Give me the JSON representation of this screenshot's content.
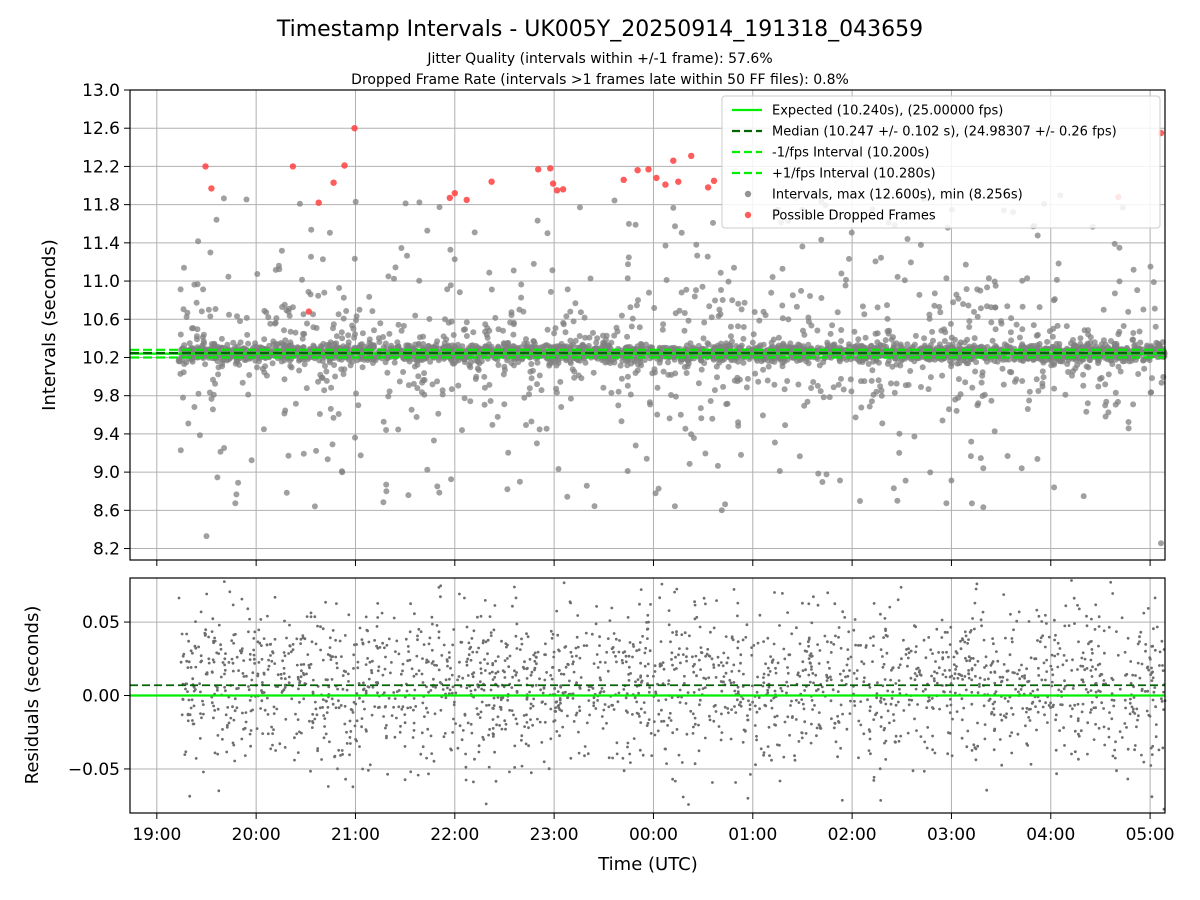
{
  "chart_data": {
    "title": "Timestamp Intervals - UK005Y_20250914_191318_043659",
    "subtitle_1": "Jitter Quality (intervals within +/-1 frame): 57.6%",
    "subtitle_2": "Dropped Frame Rate (intervals >1 frames late within 50 FF files): 0.8%",
    "xlabel": "Time (UTC)",
    "x_ticks": [
      "19:00",
      "20:00",
      "21:00",
      "22:00",
      "23:00",
      "00:00",
      "01:00",
      "02:00",
      "03:00",
      "04:00",
      "05:00"
    ],
    "x_range_hours": [
      -0.27,
      10.15
    ],
    "data_start_hour": 0.22,
    "data_end_hour": 10.15,
    "top": {
      "type": "scatter",
      "ylabel": "Intervals (seconds)",
      "ylim": [
        8.08,
        13.0
      ],
      "y_ticks": [
        "8.2",
        "8.6",
        "9.0",
        "9.4",
        "9.8",
        "10.2",
        "10.6",
        "11.0",
        "11.4",
        "11.8",
        "12.2",
        "12.6",
        "13.0"
      ],
      "expected": 10.24,
      "median": 10.247,
      "minus_interval": 10.2,
      "plus_interval": 10.28,
      "max_interval": 12.6,
      "min_interval": 8.256,
      "grid": true,
      "legend_position": "top-right",
      "legend": [
        "Expected (10.240s), (25.00000 fps)",
        "Median (10.247 +/- 0.102 s), (24.98307 +/- 0.26 fps)",
        "-1/fps Interval (10.200s)",
        "+1/fps Interval (10.280s)",
        "Intervals, max (12.600s), min (8.256s)",
        "Possible Dropped Frames"
      ],
      "dropped_frames": [
        [
          0.49,
          12.2
        ],
        [
          0.55,
          11.97
        ],
        [
          1.37,
          12.2
        ],
        [
          1.53,
          10.68
        ],
        [
          1.63,
          11.82
        ],
        [
          1.78,
          12.03
        ],
        [
          1.89,
          12.21
        ],
        [
          1.99,
          12.6
        ],
        [
          2.95,
          11.87
        ],
        [
          3.0,
          11.92
        ],
        [
          3.12,
          11.85
        ],
        [
          3.37,
          12.04
        ],
        [
          3.84,
          12.17
        ],
        [
          3.96,
          12.18
        ],
        [
          3.99,
          12.02
        ],
        [
          4.03,
          11.95
        ],
        [
          4.09,
          11.96
        ],
        [
          4.7,
          12.06
        ],
        [
          4.84,
          12.16
        ],
        [
          4.95,
          12.17
        ],
        [
          5.03,
          12.08
        ],
        [
          5.12,
          12.01
        ],
        [
          5.2,
          12.26
        ],
        [
          5.25,
          12.04
        ],
        [
          5.38,
          12.31
        ],
        [
          5.55,
          11.98
        ],
        [
          5.61,
          12.05
        ],
        [
          9.68,
          11.88
        ],
        [
          10.11,
          12.55
        ]
      ],
      "colors": {
        "expected": "#00ee00",
        "median": "#006400",
        "interval": "#00ee00",
        "points": "#808080",
        "dropped": "#ff4040"
      }
    },
    "bottom": {
      "type": "scatter",
      "ylabel": "Residuals (seconds)",
      "ylim": [
        -0.08,
        0.08
      ],
      "y_ticks": [
        "−0.05",
        "0.00",
        "0.05"
      ],
      "expected_residual": 0.0,
      "median_residual": 0.007,
      "grid": true
    }
  }
}
